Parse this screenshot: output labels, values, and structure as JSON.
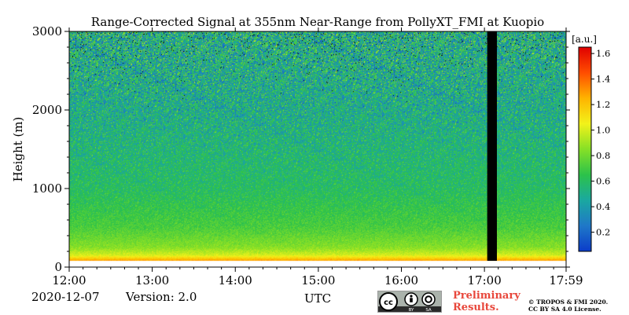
{
  "colors": {
    "colormap": [
      "#0b3cc9",
      "#1f78c8",
      "#1aa8a0",
      "#2cc24a",
      "#86e026",
      "#f2f21a",
      "#ffb300",
      "#ff4d00",
      "#e00000"
    ],
    "gap": "#000000",
    "prelim": "#e8473b"
  },
  "chart_data": {
    "type": "heatmap",
    "title": "Range-Corrected Signal at 355nm Near-Range from PollyXT_FMI at Kuopio",
    "xlabel": "UTC",
    "ylabel": "Height (m)",
    "x_ticks": [
      "12:00",
      "13:00",
      "14:00",
      "15:00",
      "16:00",
      "17:00",
      "17:59"
    ],
    "x_range": [
      "12:00",
      "17:59"
    ],
    "y_ticks": [
      "0",
      "1000",
      "2000",
      "3000"
    ],
    "ylim": [
      0,
      3000
    ],
    "colorbar": {
      "label": "[a.u.]",
      "ticks": [
        "0.2",
        "0.4",
        "0.6",
        "0.8",
        "1.0",
        "1.2",
        "1.4",
        "1.6"
      ],
      "range": [
        0.05,
        1.65
      ]
    },
    "no_data_interval": [
      "17:02",
      "17:09"
    ],
    "signal_profile": [
      {
        "height": 0,
        "value": null
      },
      {
        "height": 80,
        "value": 1.3
      },
      {
        "height": 150,
        "value": 1.0
      },
      {
        "height": 250,
        "value": 0.85
      },
      {
        "height": 500,
        "value": 0.72
      },
      {
        "height": 1000,
        "value": 0.6
      },
      {
        "height": 1500,
        "value": 0.55
      },
      {
        "height": 2000,
        "value": 0.5
      },
      {
        "height": 2500,
        "value": 0.5
      },
      {
        "height": 3000,
        "value": 0.5
      }
    ]
  },
  "footer": {
    "date": "2020-12-07",
    "version": "Version: 2.0",
    "preliminary_line1": "Preliminary",
    "preliminary_line2": "Results.",
    "copyright_line1": "© TROPOS & FMI 2020.",
    "copyright_line2": "CC BY SA 4.0 License.",
    "cc_icons": [
      "cc-icon",
      "by-icon",
      "sa-icon"
    ]
  }
}
